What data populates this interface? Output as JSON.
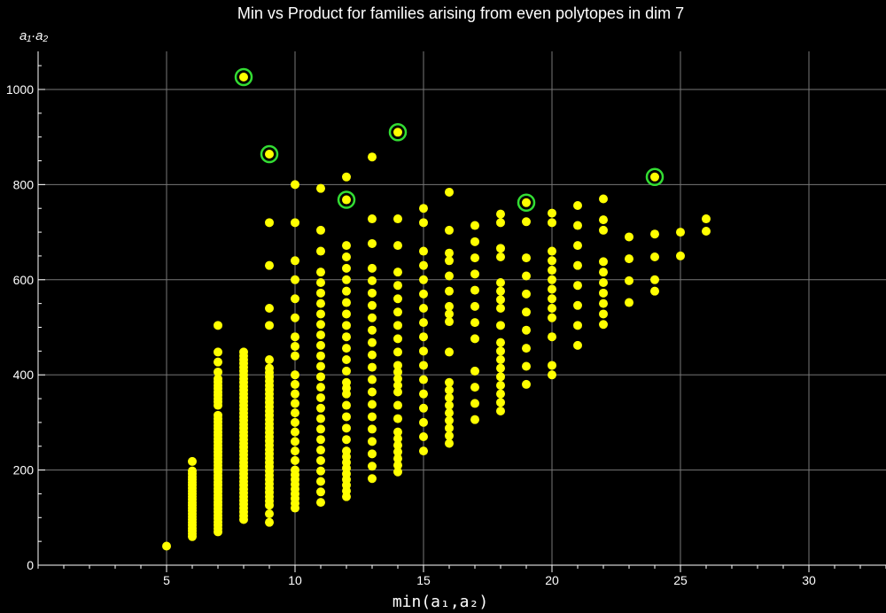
{
  "chart_data": {
    "type": "scatter",
    "title": "Min vs Product for families arising from even polytopes in dim 7",
    "xlabel": "min(a₁,a₂)",
    "ylabel": "a₁·a₂",
    "xlim": [
      0,
      33
    ],
    "ylim": [
      0,
      1080
    ],
    "x_ticks": [
      5,
      10,
      15,
      20,
      25,
      30
    ],
    "y_ticks": [
      0,
      200,
      400,
      600,
      800,
      1000
    ],
    "grid": true,
    "colors": {
      "background": "#000000",
      "points": "#ffff00",
      "highlight_ring": "#33dd33",
      "grid": "#777777",
      "axis": "#ffffff"
    },
    "highlighted": [
      [
        8,
        1026
      ],
      [
        9,
        864
      ],
      [
        12,
        768
      ],
      [
        14,
        910
      ],
      [
        19,
        762
      ],
      [
        24,
        816
      ]
    ],
    "columns": [
      {
        "x": 5,
        "y": [
          40
        ]
      },
      {
        "x": 6,
        "y": [
          60,
          66,
          72,
          78,
          84,
          90,
          96,
          102,
          108,
          114,
          120,
          126,
          132,
          138,
          144,
          150,
          156,
          162,
          168,
          174,
          180,
          186,
          192,
          198,
          218
        ]
      },
      {
        "x": 7,
        "y": [
          70,
          77,
          84,
          91,
          98,
          105,
          112,
          119,
          126,
          133,
          140,
          147,
          154,
          161,
          168,
          175,
          182,
          189,
          196,
          203,
          210,
          217,
          224,
          231,
          238,
          245,
          252,
          259,
          266,
          273,
          280,
          287,
          294,
          301,
          308,
          315,
          336,
          343,
          350,
          357,
          364,
          371,
          378,
          385,
          392,
          406,
          427,
          448,
          504
        ]
      },
      {
        "x": 8,
        "y": [
          96,
          104,
          112,
          120,
          128,
          136,
          144,
          152,
          160,
          168,
          176,
          184,
          192,
          200,
          208,
          216,
          224,
          232,
          240,
          248,
          256,
          264,
          272,
          280,
          288,
          296,
          304,
          312,
          320,
          328,
          336,
          344,
          352,
          360,
          368,
          376,
          384,
          392,
          400,
          408,
          416,
          424,
          432,
          440,
          448,
          1026
        ]
      },
      {
        "x": 9,
        "y": [
          90,
          108,
          126,
          135,
          144,
          153,
          162,
          171,
          180,
          189,
          198,
          207,
          216,
          225,
          234,
          243,
          252,
          261,
          270,
          279,
          288,
          297,
          306,
          315,
          324,
          333,
          342,
          351,
          360,
          369,
          378,
          387,
          396,
          405,
          414,
          432,
          504,
          540,
          630,
          720,
          864
        ]
      },
      {
        "x": 10,
        "y": [
          120,
          130,
          140,
          150,
          160,
          170,
          180,
          190,
          200,
          220,
          240,
          260,
          280,
          300,
          320,
          340,
          360,
          380,
          400,
          440,
          460,
          480,
          520,
          560,
          600,
          640,
          720,
          800
        ]
      },
      {
        "x": 11,
        "y": [
          132,
          154,
          176,
          198,
          220,
          242,
          264,
          286,
          308,
          330,
          352,
          374,
          396,
          418,
          440,
          462,
          484,
          506,
          528,
          550,
          572,
          594,
          616,
          660,
          704,
          792
        ]
      },
      {
        "x": 12,
        "y": [
          144,
          156,
          168,
          180,
          192,
          204,
          216,
          228,
          240,
          264,
          288,
          312,
          336,
          360,
          372,
          384,
          408,
          432,
          456,
          480,
          504,
          528,
          552,
          576,
          600,
          624,
          648,
          672,
          768,
          816
        ]
      },
      {
        "x": 13,
        "y": [
          182,
          208,
          234,
          260,
          286,
          312,
          338,
          364,
          390,
          416,
          442,
          468,
          494,
          520,
          546,
          572,
          598,
          624,
          676,
          728,
          858
        ]
      },
      {
        "x": 14,
        "y": [
          196,
          210,
          224,
          238,
          252,
          266,
          280,
          308,
          336,
          364,
          378,
          392,
          406,
          420,
          448,
          476,
          504,
          532,
          560,
          588,
          616,
          672,
          728,
          910
        ]
      },
      {
        "x": 15,
        "y": [
          240,
          270,
          300,
          330,
          360,
          390,
          420,
          450,
          480,
          510,
          540,
          570,
          600,
          630,
          660,
          720,
          750
        ]
      },
      {
        "x": 16,
        "y": [
          256,
          272,
          288,
          304,
          320,
          336,
          352,
          368,
          384,
          448,
          512,
          528,
          544,
          576,
          608,
          640,
          656,
          704,
          784
        ]
      },
      {
        "x": 17,
        "y": [
          306,
          340,
          374,
          408,
          476,
          510,
          544,
          578,
          612,
          646,
          680,
          714
        ]
      },
      {
        "x": 18,
        "y": [
          324,
          342,
          360,
          378,
          396,
          414,
          432,
          450,
          468,
          504,
          540,
          558,
          576,
          594,
          648,
          666,
          720,
          738
        ]
      },
      {
        "x": 19,
        "y": [
          380,
          418,
          456,
          494,
          532,
          570,
          608,
          646,
          722,
          762
        ]
      },
      {
        "x": 20,
        "y": [
          400,
          420,
          480,
          520,
          540,
          560,
          580,
          600,
          620,
          640,
          660,
          720,
          740
        ]
      },
      {
        "x": 21,
        "y": [
          462,
          504,
          546,
          588,
          630,
          672,
          714,
          756
        ]
      },
      {
        "x": 22,
        "y": [
          506,
          528,
          550,
          572,
          594,
          616,
          638,
          704,
          726,
          770
        ]
      },
      {
        "x": 23,
        "y": [
          552,
          598,
          644,
          690
        ]
      },
      {
        "x": 24,
        "y": [
          576,
          600,
          648,
          696,
          816
        ]
      },
      {
        "x": 25,
        "y": [
          650,
          700
        ]
      },
      {
        "x": 26,
        "y": [
          702,
          728
        ]
      }
    ]
  }
}
